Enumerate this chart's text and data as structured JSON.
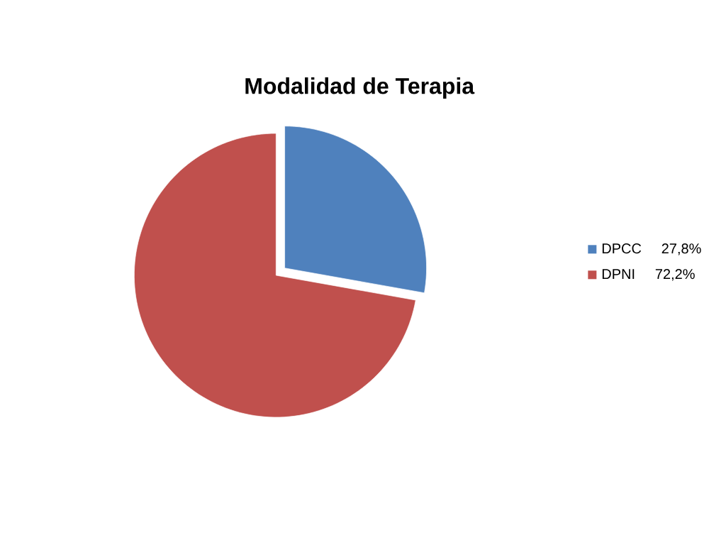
{
  "chart_data": {
    "type": "pie",
    "title": "Modalidad de Terapia",
    "categories": [
      "DPCC     27,8%",
      "DPNI      72,2%"
    ],
    "values": [
      27.8,
      72.2
    ],
    "colors": [
      "#4f81bd",
      "#c0504d"
    ],
    "legend": "right"
  }
}
